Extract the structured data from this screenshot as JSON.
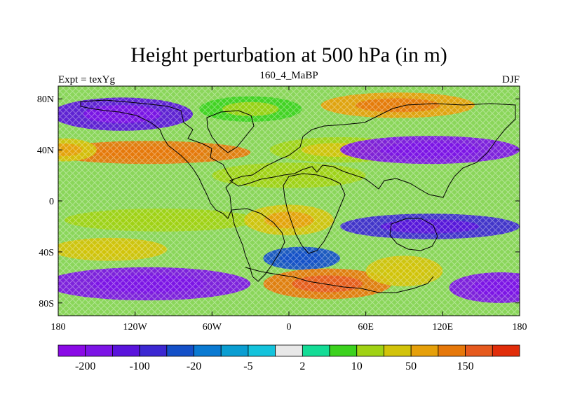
{
  "title": "Height perturbation at 500 hPa (in m)",
  "left_label": "Expt = texYg",
  "center_label": "160_4_MaBP",
  "right_label": "DJF",
  "lat_ticks": [
    {
      "value": 80,
      "label": "80N"
    },
    {
      "value": 40,
      "label": "40N"
    },
    {
      "value": 0,
      "label": "0"
    },
    {
      "value": -40,
      "label": "40S"
    },
    {
      "value": -80,
      "label": "80S"
    }
  ],
  "lon_ticks": [
    {
      "value": -180,
      "label": "180"
    },
    {
      "value": -120,
      "label": "120W"
    },
    {
      "value": -60,
      "label": "60W"
    },
    {
      "value": 0,
      "label": "0"
    },
    {
      "value": 60,
      "label": "60E"
    },
    {
      "value": 120,
      "label": "120E"
    },
    {
      "value": 180,
      "label": "180"
    }
  ],
  "colorbar": {
    "colors": [
      "#8a0ae6",
      "#7c14e6",
      "#5a14dc",
      "#3c28d2",
      "#1450c8",
      "#0a7ad2",
      "#0a9ed2",
      "#14c3dc",
      "#e8e8e8",
      "#14dc96",
      "#3cd21e",
      "#a0d214",
      "#d2c30a",
      "#e6a00a",
      "#e6780a",
      "#e65a1e",
      "#e12d0a"
    ],
    "labels": [
      {
        "boundary": 1,
        "text": "-200"
      },
      {
        "boundary": 3,
        "text": "-100"
      },
      {
        "boundary": 5,
        "text": "-20"
      },
      {
        "boundary": 7,
        "text": "-5"
      },
      {
        "boundary": 9,
        "text": "2"
      },
      {
        "boundary": 11,
        "text": "10"
      },
      {
        "boundary": 13,
        "text": "50"
      },
      {
        "boundary": 15,
        "text": "150"
      }
    ]
  },
  "field_blobs": [
    {
      "lon": -130,
      "lat": 68,
      "rlon": 55,
      "rlat": 13,
      "value": -130
    },
    {
      "lon": -110,
      "lat": 38,
      "rlon": 80,
      "rlat": 9,
      "value": 110
    },
    {
      "lon": -175,
      "lat": 40,
      "rlon": 25,
      "rlat": 9,
      "value": 50
    },
    {
      "lon": 40,
      "lat": 40,
      "rlon": 55,
      "rlat": 10,
      "value": 20
    },
    {
      "lon": 110,
      "lat": 40,
      "rlon": 70,
      "rlat": 11,
      "value": -150
    },
    {
      "lon": 85,
      "lat": 75,
      "rlon": 60,
      "rlat": 10,
      "value": 80
    },
    {
      "lon": -30,
      "lat": 72,
      "rlon": 40,
      "rlat": 10,
      "value": 10
    },
    {
      "lon": 0,
      "lat": 20,
      "rlon": 60,
      "rlat": 10,
      "value": 15
    },
    {
      "lon": -100,
      "lat": -15,
      "rlon": 75,
      "rlat": 9,
      "value": 15
    },
    {
      "lon": 0,
      "lat": -15,
      "rlon": 35,
      "rlat": 12,
      "value": 40
    },
    {
      "lon": 110,
      "lat": -20,
      "rlon": 70,
      "rlat": 10,
      "value": -90
    },
    {
      "lon": -140,
      "lat": -38,
      "rlon": 45,
      "rlat": 9,
      "value": 35
    },
    {
      "lon": -110,
      "lat": -65,
      "rlon": 80,
      "rlat": 13,
      "value": -150
    },
    {
      "lon": 10,
      "lat": -45,
      "rlon": 30,
      "rlat": 9,
      "value": -20
    },
    {
      "lon": 30,
      "lat": -65,
      "rlon": 50,
      "rlat": 12,
      "value": 140
    },
    {
      "lon": 90,
      "lat": -55,
      "rlon": 30,
      "rlat": 12,
      "value": 35
    },
    {
      "lon": 165,
      "lat": -68,
      "rlon": 40,
      "rlat": 12,
      "value": -150
    }
  ]
}
